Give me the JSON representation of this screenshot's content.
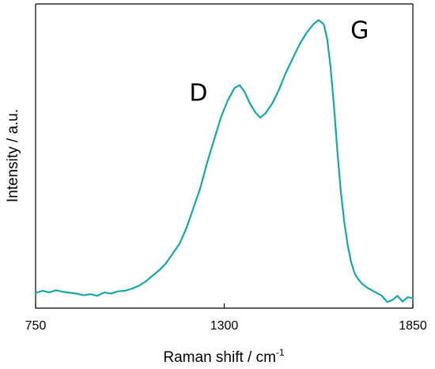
{
  "chart_data": {
    "type": "line",
    "title": "",
    "xlabel": "Raman shift / cm",
    "xlabel_superscript": "-1",
    "ylabel": "Intensity / a.u.",
    "xlim": [
      750,
      1850
    ],
    "ylim": [
      0,
      1
    ],
    "x_ticks": [
      750,
      1300,
      1850
    ],
    "x_tick_labels": [
      "750",
      "1300",
      "1850"
    ],
    "y_ticks_shown": false,
    "grid": false,
    "legend": "none",
    "line_color": "#1aa6a4",
    "annotations": [
      {
        "text": "D",
        "x": 1225,
        "y": 0.7
      },
      {
        "text": "G",
        "x": 1695,
        "y": 0.92
      }
    ],
    "series": [
      {
        "x": [
          750,
          770,
          790,
          810,
          830,
          850,
          870,
          890,
          910,
          930,
          950,
          970,
          990,
          1010,
          1030,
          1050,
          1070,
          1090,
          1110,
          1130,
          1150,
          1170,
          1190,
          1210,
          1230,
          1250,
          1270,
          1290,
          1310,
          1330,
          1345,
          1360,
          1375,
          1390,
          1405,
          1420,
          1440,
          1460,
          1480,
          1500,
          1520,
          1540,
          1560,
          1575,
          1590,
          1600,
          1610,
          1620,
          1630,
          1640,
          1650,
          1660,
          1670,
          1680,
          1690,
          1700,
          1715,
          1730,
          1745,
          1760,
          1775,
          1790,
          1805,
          1820,
          1835,
          1850
        ],
        "y": [
          0.02,
          0.028,
          0.022,
          0.03,
          0.024,
          0.021,
          0.018,
          0.012,
          0.016,
          0.01,
          0.022,
          0.018,
          0.026,
          0.028,
          0.035,
          0.045,
          0.06,
          0.08,
          0.1,
          0.125,
          0.16,
          0.195,
          0.25,
          0.32,
          0.39,
          0.48,
          0.56,
          0.64,
          0.7,
          0.745,
          0.755,
          0.73,
          0.69,
          0.66,
          0.64,
          0.655,
          0.69,
          0.74,
          0.8,
          0.85,
          0.9,
          0.94,
          0.97,
          0.985,
          0.97,
          0.92,
          0.82,
          0.68,
          0.52,
          0.38,
          0.27,
          0.19,
          0.13,
          0.09,
          0.07,
          0.055,
          0.04,
          0.03,
          0.02,
          0.01,
          -0.012,
          -0.005,
          0.01,
          -0.01,
          0.005,
          0.002
        ]
      }
    ]
  }
}
